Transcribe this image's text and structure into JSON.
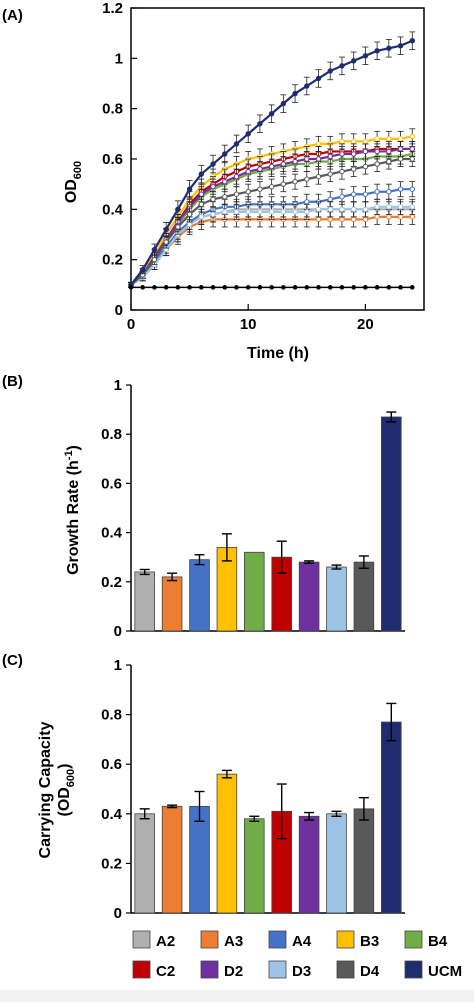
{
  "chart_data": [
    {
      "panel": "(A)",
      "type": "line",
      "xlabel": "Time (h)",
      "ylabel": "OD600",
      "xlim": [
        0,
        25
      ],
      "ylim": [
        0,
        1.2
      ],
      "xticks": [
        "0",
        "10",
        "20"
      ],
      "yticks": [
        "0",
        "0.2",
        "0.4",
        "0.6",
        "0.8",
        "1",
        "1.2"
      ],
      "x": [
        0,
        1,
        2,
        3,
        4,
        5,
        6,
        7,
        8,
        9,
        10,
        11,
        12,
        13,
        14,
        15,
        16,
        17,
        18,
        19,
        20,
        21,
        22,
        23,
        24
      ],
      "series": [
        {
          "name": "A2",
          "color": "#b0b0b0",
          "values": [
            0.1,
            0.13,
            0.18,
            0.24,
            0.3,
            0.34,
            0.37,
            0.38,
            0.39,
            0.4,
            0.4,
            0.4,
            0.4,
            0.4,
            0.4,
            0.4,
            0.4,
            0.4,
            0.4,
            0.4,
            0.4,
            0.4,
            0.4,
            0.4,
            0.4
          ]
        },
        {
          "name": "A3",
          "color": "#ed7d31",
          "values": [
            0.1,
            0.13,
            0.18,
            0.24,
            0.29,
            0.33,
            0.35,
            0.36,
            0.36,
            0.36,
            0.36,
            0.36,
            0.36,
            0.36,
            0.36,
            0.36,
            0.36,
            0.36,
            0.36,
            0.36,
            0.36,
            0.37,
            0.37,
            0.37,
            0.37
          ]
        },
        {
          "name": "A4",
          "color": "#4472c4",
          "values": [
            0.1,
            0.14,
            0.19,
            0.25,
            0.31,
            0.35,
            0.38,
            0.4,
            0.41,
            0.41,
            0.42,
            0.42,
            0.42,
            0.42,
            0.42,
            0.43,
            0.43,
            0.44,
            0.45,
            0.46,
            0.46,
            0.47,
            0.47,
            0.48,
            0.48
          ]
        },
        {
          "name": "B3",
          "color": "#ffc000",
          "values": [
            0.1,
            0.15,
            0.22,
            0.3,
            0.37,
            0.44,
            0.49,
            0.53,
            0.56,
            0.58,
            0.6,
            0.61,
            0.62,
            0.63,
            0.64,
            0.65,
            0.66,
            0.66,
            0.67,
            0.67,
            0.67,
            0.68,
            0.68,
            0.68,
            0.69
          ]
        },
        {
          "name": "B4",
          "color": "#70ad47",
          "values": [
            0.1,
            0.14,
            0.2,
            0.27,
            0.34,
            0.4,
            0.45,
            0.48,
            0.5,
            0.52,
            0.54,
            0.55,
            0.56,
            0.57,
            0.58,
            0.58,
            0.59,
            0.59,
            0.6,
            0.6,
            0.6,
            0.61,
            0.61,
            0.61,
            0.62
          ]
        },
        {
          "name": "C2",
          "color": "#c00000",
          "values": [
            0.1,
            0.14,
            0.21,
            0.28,
            0.35,
            0.42,
            0.47,
            0.5,
            0.53,
            0.55,
            0.57,
            0.58,
            0.59,
            0.6,
            0.61,
            0.62,
            0.62,
            0.63,
            0.63,
            0.63,
            0.63,
            0.64,
            0.64,
            0.64,
            0.64
          ]
        },
        {
          "name": "D2",
          "color": "#7030a0",
          "values": [
            0.1,
            0.14,
            0.21,
            0.28,
            0.35,
            0.41,
            0.46,
            0.49,
            0.51,
            0.53,
            0.55,
            0.56,
            0.57,
            0.58,
            0.59,
            0.6,
            0.6,
            0.61,
            0.62,
            0.62,
            0.63,
            0.63,
            0.63,
            0.64,
            0.64
          ]
        },
        {
          "name": "D3",
          "color": "#9dc3e6",
          "values": [
            0.1,
            0.13,
            0.18,
            0.24,
            0.3,
            0.34,
            0.37,
            0.38,
            0.39,
            0.39,
            0.39,
            0.39,
            0.39,
            0.39,
            0.39,
            0.39,
            0.4,
            0.4,
            0.4,
            0.4,
            0.4,
            0.41,
            0.41,
            0.41,
            0.41
          ]
        },
        {
          "name": "D4",
          "color": "#595959",
          "values": [
            0.1,
            0.14,
            0.2,
            0.27,
            0.33,
            0.38,
            0.42,
            0.44,
            0.45,
            0.46,
            0.47,
            0.48,
            0.49,
            0.5,
            0.51,
            0.52,
            0.53,
            0.54,
            0.55,
            0.56,
            0.57,
            0.58,
            0.59,
            0.6,
            0.6
          ]
        },
        {
          "name": "UCM",
          "color": "#1f2d6e",
          "values": [
            0.1,
            0.16,
            0.24,
            0.32,
            0.4,
            0.48,
            0.54,
            0.58,
            0.62,
            0.66,
            0.7,
            0.74,
            0.78,
            0.82,
            0.86,
            0.89,
            0.92,
            0.95,
            0.97,
            0.99,
            1.01,
            1.03,
            1.04,
            1.05,
            1.07
          ]
        },
        {
          "name": "",
          "color": "#000000",
          "values": [
            0.09,
            0.09,
            0.09,
            0.09,
            0.09,
            0.09,
            0.09,
            0.09,
            0.09,
            0.09,
            0.09,
            0.09,
            0.09,
            0.09,
            0.09,
            0.09,
            0.09,
            0.09,
            0.09,
            0.09,
            0.09,
            0.09,
            0.09,
            0.09,
            0.09
          ]
        }
      ],
      "grid": false
    },
    {
      "panel": "(B)",
      "type": "bar",
      "ylabel": "Growth Rate (h-1)",
      "ylim": [
        0,
        1
      ],
      "yticks": [
        "0",
        "0.2",
        "0.4",
        "0.6",
        "0.8",
        "1"
      ],
      "categories": [
        "A2",
        "A3",
        "A4",
        "B3",
        "B4",
        "C2",
        "D2",
        "D3",
        "D4",
        "UCM"
      ],
      "values": [
        0.24,
        0.22,
        0.29,
        0.34,
        0.32,
        0.3,
        0.28,
        0.26,
        0.28,
        0.87
      ],
      "errors": [
        0.01,
        0.015,
        0.02,
        0.055,
        0.0,
        0.065,
        0.005,
        0.008,
        0.025,
        0.02
      ],
      "grid": false
    },
    {
      "panel": "(C)",
      "type": "bar",
      "ylabel": "Carrying Capacity (OD600)",
      "ylim": [
        0,
        1
      ],
      "yticks": [
        "0",
        "0.2",
        "0.4",
        "0.6",
        "0.8",
        "1"
      ],
      "categories": [
        "A2",
        "A3",
        "A4",
        "B3",
        "B4",
        "C2",
        "D2",
        "D3",
        "D4",
        "UCM"
      ],
      "values": [
        0.4,
        0.43,
        0.43,
        0.56,
        0.38,
        0.41,
        0.39,
        0.4,
        0.42,
        0.77
      ],
      "errors": [
        0.02,
        0.005,
        0.06,
        0.015,
        0.01,
        0.11,
        0.015,
        0.01,
        0.045,
        0.075
      ],
      "grid": false
    }
  ],
  "legend": {
    "placement": "bottom",
    "items": [
      {
        "label": "A2",
        "color": "#b0b0b0"
      },
      {
        "label": "A3",
        "color": "#ed7d31"
      },
      {
        "label": "A4",
        "color": "#4472c4"
      },
      {
        "label": "B3",
        "color": "#ffc000"
      },
      {
        "label": "B4",
        "color": "#70ad47"
      },
      {
        "label": "C2",
        "color": "#c00000"
      },
      {
        "label": "D2",
        "color": "#7030a0"
      },
      {
        "label": "D3",
        "color": "#9dc3e6"
      },
      {
        "label": "D4",
        "color": "#595959"
      },
      {
        "label": "UCM",
        "color": "#1f2d6e"
      }
    ]
  },
  "labels": {
    "panelA": "(A)",
    "panelB": "(B)",
    "panelC": "(C)",
    "xlabelA": "Time (h)",
    "ylabelA_main": "OD",
    "ylabelA_sub": "600",
    "ylabelB_main": "Growth Rate (h",
    "ylabelB_sup": "-1",
    "ylabelB_end": ")",
    "ylabelC_line1": "Carrying Capacity",
    "ylabelC_line2_open": "(OD",
    "ylabelC_line2_sub": "600",
    "ylabelC_line2_close": ")"
  }
}
